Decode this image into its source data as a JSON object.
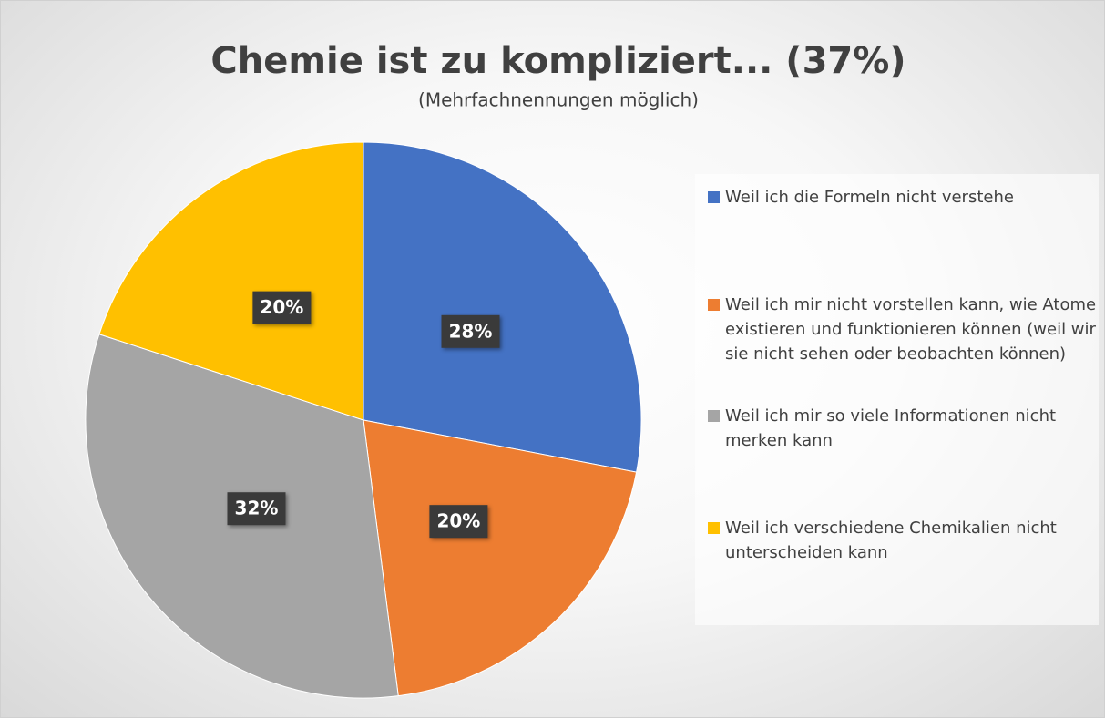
{
  "chart_data": {
    "type": "pie",
    "title": "Chemie ist zu kompliziert... (37%)",
    "subtitle": "(Mehrfachnennungen möglich)",
    "categories": [
      "Weil ich die Formeln nicht verstehe",
      "Weil ich mir nicht vorstellen kann, wie Atome existieren und funktionieren können (weil wir sie nicht sehen oder beobachten können)",
      "Weil ich mir so viele Informationen nicht merken kann",
      "Weil ich verschiedene Chemikalien nicht unterscheiden kann"
    ],
    "values": [
      28,
      20,
      32,
      20
    ],
    "value_labels": [
      "28%",
      "20%",
      "32%",
      "20%"
    ],
    "colors": [
      "#4472c4",
      "#ed7d31",
      "#a5a5a5",
      "#ffc000"
    ],
    "legend": "right"
  }
}
